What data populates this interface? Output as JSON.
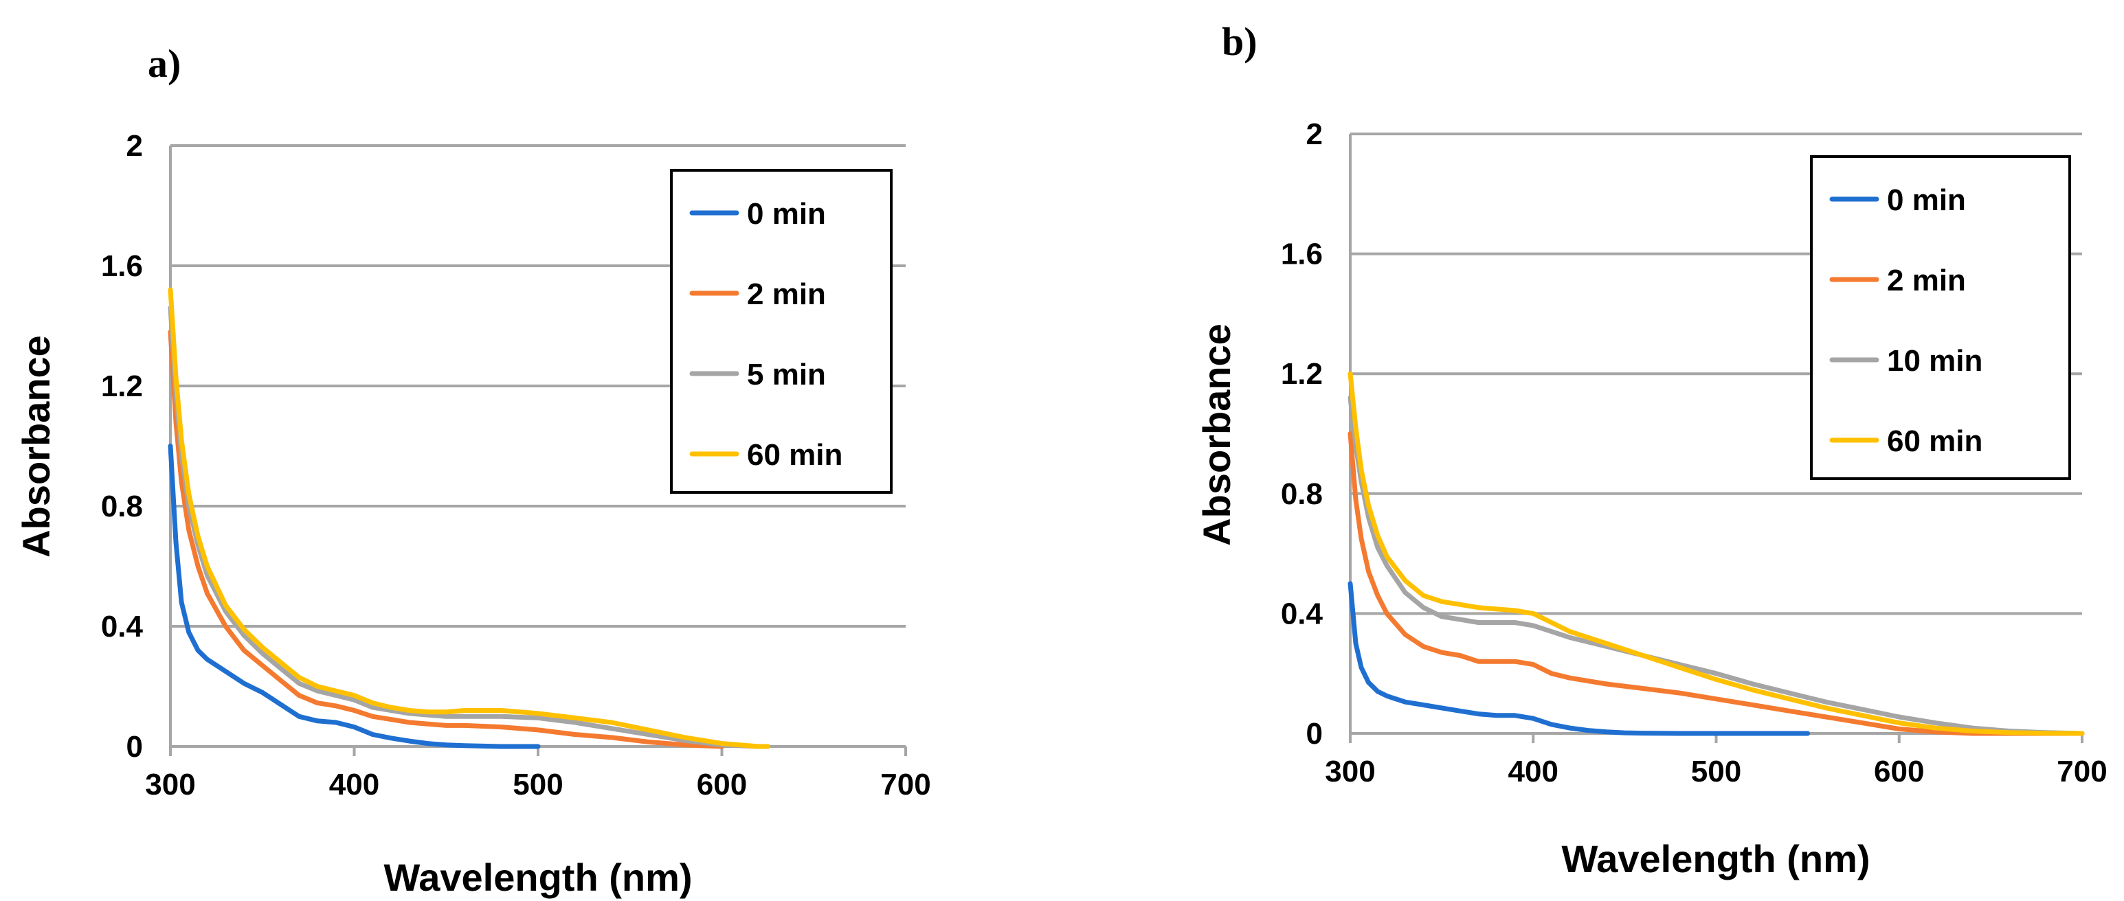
{
  "chart_data": [
    {
      "type": "line",
      "panel_label": "a)",
      "xlabel": "Wavelength (nm)",
      "ylabel": "Absorbance",
      "xlim": [
        300,
        700
      ],
      "ylim": [
        0,
        2
      ],
      "xticks": [
        300,
        400,
        500,
        600,
        700
      ],
      "yticks": [
        0,
        0.4,
        0.8,
        1.2,
        1.6,
        2
      ],
      "ytick_labels": [
        "0",
        "0.4",
        "0.8",
        "1.2",
        "1.6",
        "2"
      ],
      "xtick_labels": [
        "300",
        "400",
        "500",
        "600",
        "700"
      ],
      "grid": true,
      "legend_position": "top-right",
      "series": [
        {
          "name": "0 min",
          "color": "#1f6fd1",
          "x": [
            300,
            303,
            306,
            310,
            315,
            320,
            330,
            340,
            350,
            360,
            370,
            380,
            390,
            400,
            410,
            420,
            430,
            440,
            450,
            460,
            480,
            500
          ],
          "y": [
            1.0,
            0.68,
            0.48,
            0.38,
            0.32,
            0.29,
            0.25,
            0.21,
            0.18,
            0.14,
            0.1,
            0.085,
            0.08,
            0.065,
            0.04,
            0.028,
            0.018,
            0.01,
            0.005,
            0.003,
            0.0,
            0.0
          ]
        },
        {
          "name": "2 min",
          "color": "#f47a30",
          "x": [
            300,
            303,
            306,
            310,
            315,
            320,
            330,
            340,
            350,
            360,
            370,
            380,
            390,
            400,
            410,
            420,
            430,
            450,
            460,
            480,
            500,
            520,
            540,
            560,
            580,
            600
          ],
          "y": [
            1.38,
            1.08,
            0.88,
            0.72,
            0.6,
            0.51,
            0.4,
            0.32,
            0.27,
            0.22,
            0.17,
            0.145,
            0.135,
            0.12,
            0.1,
            0.09,
            0.08,
            0.07,
            0.07,
            0.065,
            0.055,
            0.04,
            0.03,
            0.015,
            0.005,
            0.0
          ]
        },
        {
          "name": "5 min",
          "color": "#a5a5a5",
          "x": [
            300,
            303,
            306,
            310,
            315,
            320,
            330,
            340,
            350,
            360,
            370,
            380,
            390,
            400,
            410,
            420,
            430,
            440,
            450,
            460,
            480,
            500,
            520,
            540,
            560,
            580,
            600,
            620
          ],
          "y": [
            1.46,
            1.18,
            0.97,
            0.8,
            0.67,
            0.57,
            0.45,
            0.37,
            0.31,
            0.26,
            0.21,
            0.185,
            0.17,
            0.155,
            0.13,
            0.12,
            0.11,
            0.105,
            0.1,
            0.1,
            0.1,
            0.095,
            0.08,
            0.06,
            0.04,
            0.02,
            0.005,
            0.0
          ]
        },
        {
          "name": "60 min",
          "color": "#ffc000",
          "x": [
            300,
            303,
            306,
            310,
            315,
            320,
            330,
            340,
            350,
            360,
            370,
            380,
            390,
            400,
            410,
            420,
            430,
            440,
            450,
            460,
            470,
            480,
            490,
            500,
            520,
            540,
            560,
            580,
            600,
            620,
            625
          ],
          "y": [
            1.52,
            1.23,
            1.02,
            0.84,
            0.7,
            0.6,
            0.47,
            0.39,
            0.33,
            0.28,
            0.23,
            0.2,
            0.185,
            0.17,
            0.145,
            0.13,
            0.12,
            0.115,
            0.115,
            0.12,
            0.12,
            0.12,
            0.115,
            0.11,
            0.095,
            0.08,
            0.055,
            0.03,
            0.01,
            0.0,
            0.0
          ]
        }
      ]
    },
    {
      "type": "line",
      "panel_label": "b)",
      "xlabel": "Wavelength (nm)",
      "ylabel": "Absorbance",
      "xlim": [
        300,
        700
      ],
      "ylim": [
        0,
        2
      ],
      "xticks": [
        300,
        400,
        500,
        600,
        700
      ],
      "yticks": [
        0,
        0.4,
        0.8,
        1.2,
        1.6,
        2
      ],
      "ytick_labels": [
        "0",
        "0.4",
        "0.8",
        "1.2",
        "1.6",
        "2"
      ],
      "xtick_labels": [
        "300",
        "400",
        "500",
        "600",
        "700"
      ],
      "grid": true,
      "legend_position": "top-right",
      "series": [
        {
          "name": "0 min",
          "color": "#1f6fd1",
          "x": [
            300,
            303,
            306,
            310,
            315,
            320,
            330,
            340,
            350,
            360,
            370,
            380,
            390,
            400,
            410,
            420,
            430,
            440,
            450,
            460,
            480,
            500,
            520,
            550
          ],
          "y": [
            0.5,
            0.3,
            0.22,
            0.17,
            0.14,
            0.125,
            0.105,
            0.095,
            0.085,
            0.075,
            0.065,
            0.06,
            0.06,
            0.05,
            0.03,
            0.018,
            0.01,
            0.005,
            0.002,
            0.001,
            0.0,
            0.0,
            0.0,
            0.0
          ]
        },
        {
          "name": "2 min",
          "color": "#f47a30",
          "x": [
            300,
            303,
            306,
            310,
            315,
            320,
            330,
            340,
            350,
            360,
            370,
            380,
            390,
            400,
            410,
            420,
            440,
            460,
            480,
            500,
            520,
            540,
            560,
            580,
            600,
            620,
            640,
            660,
            680,
            700
          ],
          "y": [
            1.0,
            0.78,
            0.65,
            0.54,
            0.46,
            0.4,
            0.33,
            0.29,
            0.27,
            0.26,
            0.24,
            0.24,
            0.24,
            0.23,
            0.2,
            0.185,
            0.165,
            0.15,
            0.135,
            0.115,
            0.095,
            0.075,
            0.055,
            0.035,
            0.015,
            0.005,
            0.0,
            0.0,
            0.0,
            0.0
          ]
        },
        {
          "name": "10 min",
          "color": "#a5a5a5",
          "x": [
            300,
            303,
            306,
            310,
            315,
            320,
            330,
            340,
            350,
            360,
            370,
            380,
            390,
            400,
            410,
            420,
            440,
            460,
            480,
            500,
            520,
            540,
            560,
            580,
            600,
            620,
            640,
            660,
            680,
            700
          ],
          "y": [
            1.12,
            0.96,
            0.84,
            0.72,
            0.62,
            0.56,
            0.47,
            0.42,
            0.39,
            0.38,
            0.37,
            0.37,
            0.37,
            0.36,
            0.34,
            0.32,
            0.29,
            0.26,
            0.23,
            0.2,
            0.165,
            0.135,
            0.105,
            0.08,
            0.055,
            0.035,
            0.018,
            0.008,
            0.003,
            0.0
          ]
        },
        {
          "name": "60 min",
          "color": "#ffc000",
          "x": [
            300,
            303,
            306,
            310,
            315,
            320,
            330,
            340,
            350,
            360,
            370,
            380,
            390,
            400,
            410,
            420,
            440,
            460,
            480,
            500,
            520,
            540,
            560,
            580,
            600,
            620,
            640,
            660,
            680,
            700
          ],
          "y": [
            1.2,
            1.02,
            0.88,
            0.76,
            0.66,
            0.59,
            0.51,
            0.46,
            0.44,
            0.43,
            0.42,
            0.415,
            0.41,
            0.4,
            0.37,
            0.34,
            0.3,
            0.26,
            0.22,
            0.18,
            0.145,
            0.115,
            0.085,
            0.06,
            0.035,
            0.018,
            0.008,
            0.003,
            0.001,
            0.0
          ]
        }
      ]
    }
  ]
}
